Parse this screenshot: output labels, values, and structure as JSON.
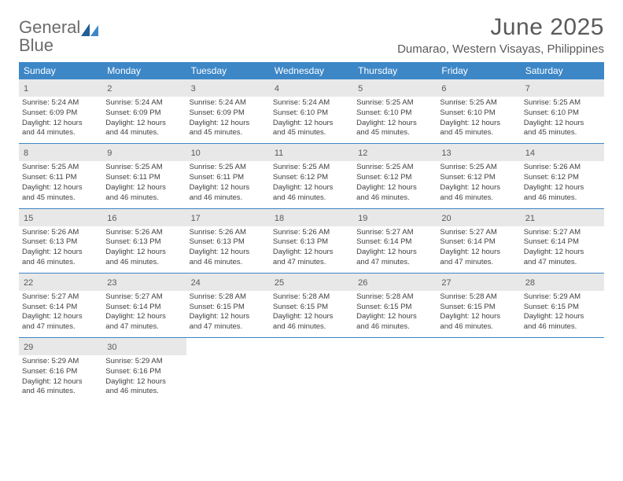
{
  "logo": {
    "word1": "General",
    "word2": "Blue"
  },
  "title": "June 2025",
  "location": "Dumarao, Western Visayas, Philippines",
  "colors": {
    "header_bg": "#3d87c7",
    "header_text": "#ffffff",
    "daynum_bg": "#e8e8e8",
    "text": "#404040",
    "title_color": "#5a5a5a",
    "logo_gray": "#6b6b6b",
    "logo_blue": "#2f7fbf",
    "page_bg": "#ffffff"
  },
  "typography": {
    "title_fontsize": 30,
    "location_fontsize": 15,
    "weekday_fontsize": 12,
    "daynum_fontsize": 11,
    "body_fontsize": 9.5,
    "font_family": "Arial"
  },
  "layout": {
    "columns": 7,
    "rows": 5,
    "cell_min_height": 78
  },
  "weekdays": [
    "Sunday",
    "Monday",
    "Tuesday",
    "Wednesday",
    "Thursday",
    "Friday",
    "Saturday"
  ],
  "days": [
    {
      "n": "1",
      "sunrise": "Sunrise: 5:24 AM",
      "sunset": "Sunset: 6:09 PM",
      "d1": "Daylight: 12 hours",
      "d2": "and 44 minutes."
    },
    {
      "n": "2",
      "sunrise": "Sunrise: 5:24 AM",
      "sunset": "Sunset: 6:09 PM",
      "d1": "Daylight: 12 hours",
      "d2": "and 44 minutes."
    },
    {
      "n": "3",
      "sunrise": "Sunrise: 5:24 AM",
      "sunset": "Sunset: 6:09 PM",
      "d1": "Daylight: 12 hours",
      "d2": "and 45 minutes."
    },
    {
      "n": "4",
      "sunrise": "Sunrise: 5:24 AM",
      "sunset": "Sunset: 6:10 PM",
      "d1": "Daylight: 12 hours",
      "d2": "and 45 minutes."
    },
    {
      "n": "5",
      "sunrise": "Sunrise: 5:25 AM",
      "sunset": "Sunset: 6:10 PM",
      "d1": "Daylight: 12 hours",
      "d2": "and 45 minutes."
    },
    {
      "n": "6",
      "sunrise": "Sunrise: 5:25 AM",
      "sunset": "Sunset: 6:10 PM",
      "d1": "Daylight: 12 hours",
      "d2": "and 45 minutes."
    },
    {
      "n": "7",
      "sunrise": "Sunrise: 5:25 AM",
      "sunset": "Sunset: 6:10 PM",
      "d1": "Daylight: 12 hours",
      "d2": "and 45 minutes."
    },
    {
      "n": "8",
      "sunrise": "Sunrise: 5:25 AM",
      "sunset": "Sunset: 6:11 PM",
      "d1": "Daylight: 12 hours",
      "d2": "and 45 minutes."
    },
    {
      "n": "9",
      "sunrise": "Sunrise: 5:25 AM",
      "sunset": "Sunset: 6:11 PM",
      "d1": "Daylight: 12 hours",
      "d2": "and 46 minutes."
    },
    {
      "n": "10",
      "sunrise": "Sunrise: 5:25 AM",
      "sunset": "Sunset: 6:11 PM",
      "d1": "Daylight: 12 hours",
      "d2": "and 46 minutes."
    },
    {
      "n": "11",
      "sunrise": "Sunrise: 5:25 AM",
      "sunset": "Sunset: 6:12 PM",
      "d1": "Daylight: 12 hours",
      "d2": "and 46 minutes."
    },
    {
      "n": "12",
      "sunrise": "Sunrise: 5:25 AM",
      "sunset": "Sunset: 6:12 PM",
      "d1": "Daylight: 12 hours",
      "d2": "and 46 minutes."
    },
    {
      "n": "13",
      "sunrise": "Sunrise: 5:25 AM",
      "sunset": "Sunset: 6:12 PM",
      "d1": "Daylight: 12 hours",
      "d2": "and 46 minutes."
    },
    {
      "n": "14",
      "sunrise": "Sunrise: 5:26 AM",
      "sunset": "Sunset: 6:12 PM",
      "d1": "Daylight: 12 hours",
      "d2": "and 46 minutes."
    },
    {
      "n": "15",
      "sunrise": "Sunrise: 5:26 AM",
      "sunset": "Sunset: 6:13 PM",
      "d1": "Daylight: 12 hours",
      "d2": "and 46 minutes."
    },
    {
      "n": "16",
      "sunrise": "Sunrise: 5:26 AM",
      "sunset": "Sunset: 6:13 PM",
      "d1": "Daylight: 12 hours",
      "d2": "and 46 minutes."
    },
    {
      "n": "17",
      "sunrise": "Sunrise: 5:26 AM",
      "sunset": "Sunset: 6:13 PM",
      "d1": "Daylight: 12 hours",
      "d2": "and 46 minutes."
    },
    {
      "n": "18",
      "sunrise": "Sunrise: 5:26 AM",
      "sunset": "Sunset: 6:13 PM",
      "d1": "Daylight: 12 hours",
      "d2": "and 47 minutes."
    },
    {
      "n": "19",
      "sunrise": "Sunrise: 5:27 AM",
      "sunset": "Sunset: 6:14 PM",
      "d1": "Daylight: 12 hours",
      "d2": "and 47 minutes."
    },
    {
      "n": "20",
      "sunrise": "Sunrise: 5:27 AM",
      "sunset": "Sunset: 6:14 PM",
      "d1": "Daylight: 12 hours",
      "d2": "and 47 minutes."
    },
    {
      "n": "21",
      "sunrise": "Sunrise: 5:27 AM",
      "sunset": "Sunset: 6:14 PM",
      "d1": "Daylight: 12 hours",
      "d2": "and 47 minutes."
    },
    {
      "n": "22",
      "sunrise": "Sunrise: 5:27 AM",
      "sunset": "Sunset: 6:14 PM",
      "d1": "Daylight: 12 hours",
      "d2": "and 47 minutes."
    },
    {
      "n": "23",
      "sunrise": "Sunrise: 5:27 AM",
      "sunset": "Sunset: 6:14 PM",
      "d1": "Daylight: 12 hours",
      "d2": "and 47 minutes."
    },
    {
      "n": "24",
      "sunrise": "Sunrise: 5:28 AM",
      "sunset": "Sunset: 6:15 PM",
      "d1": "Daylight: 12 hours",
      "d2": "and 47 minutes."
    },
    {
      "n": "25",
      "sunrise": "Sunrise: 5:28 AM",
      "sunset": "Sunset: 6:15 PM",
      "d1": "Daylight: 12 hours",
      "d2": "and 46 minutes."
    },
    {
      "n": "26",
      "sunrise": "Sunrise: 5:28 AM",
      "sunset": "Sunset: 6:15 PM",
      "d1": "Daylight: 12 hours",
      "d2": "and 46 minutes."
    },
    {
      "n": "27",
      "sunrise": "Sunrise: 5:28 AM",
      "sunset": "Sunset: 6:15 PM",
      "d1": "Daylight: 12 hours",
      "d2": "and 46 minutes."
    },
    {
      "n": "28",
      "sunrise": "Sunrise: 5:29 AM",
      "sunset": "Sunset: 6:15 PM",
      "d1": "Daylight: 12 hours",
      "d2": "and 46 minutes."
    },
    {
      "n": "29",
      "sunrise": "Sunrise: 5:29 AM",
      "sunset": "Sunset: 6:16 PM",
      "d1": "Daylight: 12 hours",
      "d2": "and 46 minutes."
    },
    {
      "n": "30",
      "sunrise": "Sunrise: 5:29 AM",
      "sunset": "Sunset: 6:16 PM",
      "d1": "Daylight: 12 hours",
      "d2": "and 46 minutes."
    }
  ]
}
